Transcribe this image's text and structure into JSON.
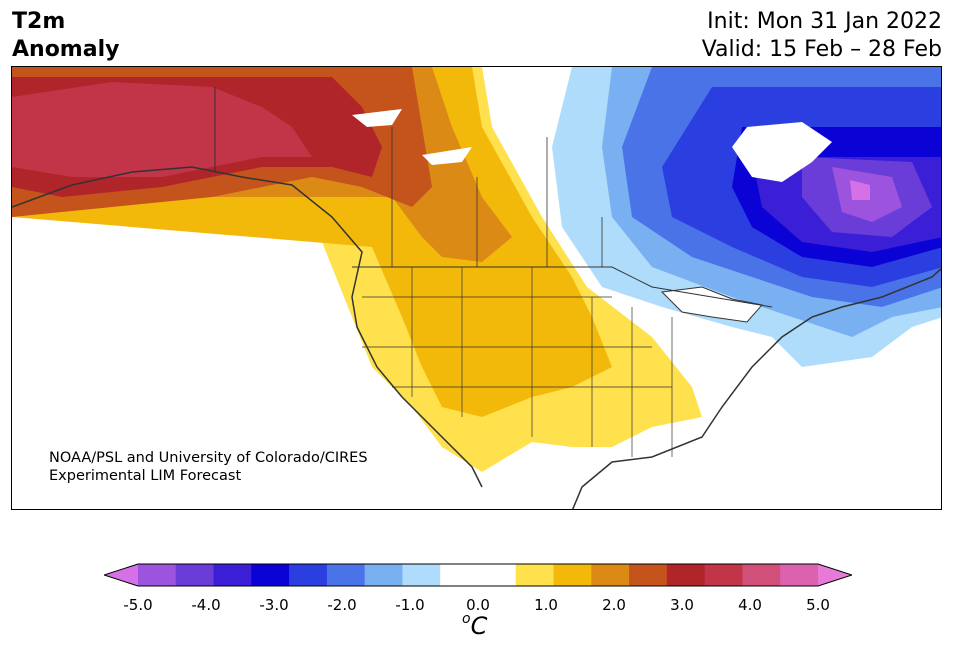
{
  "header": {
    "title_line1": "T2m",
    "title_line2": "Anomaly",
    "init": "Init: Mon 31 Jan 2022",
    "valid": "Valid: 15 Feb – 28 Feb"
  },
  "credit": {
    "line1": "NOAA/PSL and University of Colorado/CIRES",
    "line2": "Experimental LIM Forecast"
  },
  "colorbar": {
    "ticks": [
      "-5.0",
      "-4.0",
      "-3.0",
      "-2.0",
      "-1.0",
      "0.0",
      "1.0",
      "2.0",
      "3.0",
      "4.0",
      "5.0"
    ],
    "unit_base": "C",
    "unit_sup": "o",
    "extend_low": "#d570e6",
    "extend_high": "#e67ad6",
    "colors": [
      "#d570e6",
      "#9c54de",
      "#6a3dd9",
      "#3b1fd6",
      "#0b03d6",
      "#2b3fe0",
      "#4b73e8",
      "#79b0f2",
      "#b0dcfb",
      "#ffffff",
      "#ffffff",
      "#ffe04d",
      "#f2b90a",
      "#dc8a16",
      "#c4541c",
      "#b0252a",
      "#c23448",
      "#d0507a",
      "#dc62b0",
      "#e67ad6"
    ]
  },
  "map": {
    "region": "North America",
    "regions": [
      {
        "name": "alaska-warm-anomaly",
        "value": 3.5,
        "color": "#c23448"
      },
      {
        "name": "western-canada-warm",
        "value": 2.5,
        "color": "#c4541c"
      },
      {
        "name": "plains-warm",
        "value": 1.5,
        "color": "#f2b90a"
      },
      {
        "name": "southwest-warm",
        "value": 1.0,
        "color": "#ffe04d"
      },
      {
        "name": "eastern-canada-cold",
        "value": -4.0,
        "color": "#9c54de"
      },
      {
        "name": "hudson-bay-cold",
        "value": -3.0,
        "color": "#0b03d6"
      },
      {
        "name": "great-lakes-cool",
        "value": -1.5,
        "color": "#79b0f2"
      }
    ]
  }
}
